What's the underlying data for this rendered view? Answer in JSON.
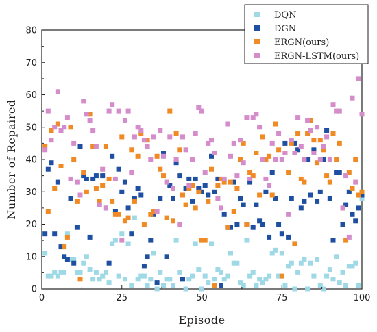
{
  "chart_data": {
    "type": "scatter",
    "title": "",
    "xlabel": "Episode",
    "ylabel": "Number of Repaired",
    "xlim": [
      0,
      100
    ],
    "ylim": [
      0,
      80
    ],
    "xticks": [
      0,
      25,
      50,
      75,
      100
    ],
    "yticks": [
      0,
      10,
      20,
      30,
      40,
      50,
      60,
      70,
      80
    ],
    "grid": false,
    "legend_position": "top-right",
    "series": [
      {
        "name": "DQN",
        "color": "#9fd9e6",
        "x": [
          1,
          2,
          3,
          4,
          5,
          6,
          7,
          8,
          9,
          10,
          11,
          12,
          13,
          14,
          15,
          16,
          17,
          18,
          19,
          20,
          21,
          22,
          23,
          24,
          25,
          26,
          27,
          28,
          29,
          30,
          31,
          32,
          33,
          34,
          35,
          36,
          37,
          38,
          39,
          40,
          41,
          42,
          43,
          44,
          45,
          46,
          47,
          48,
          49,
          50,
          51,
          52,
          53,
          54,
          55,
          56,
          57,
          58,
          59,
          60,
          61,
          62,
          63,
          64,
          65,
          66,
          67,
          68,
          69,
          70,
          71,
          72,
          73,
          74,
          75,
          76,
          77,
          78,
          79,
          80,
          81,
          82,
          83,
          84,
          85,
          86,
          87,
          88,
          89,
          90,
          91,
          92,
          93,
          94,
          95,
          96,
          97,
          98,
          99,
          100
        ],
        "y": [
          11,
          4,
          4,
          5,
          4,
          5,
          5,
          17,
          9,
          9,
          5,
          5,
          8,
          10,
          6,
          3,
          5,
          3,
          4,
          5,
          2,
          14,
          15,
          4,
          17,
          3,
          14,
          1,
          22,
          3,
          4,
          4,
          1,
          3,
          11,
          0,
          5,
          1,
          3,
          3,
          1,
          15,
          5,
          3,
          0,
          3,
          4,
          14,
          6,
          0,
          4,
          2,
          14,
          3,
          6,
          5,
          3,
          4,
          11,
          8,
          8,
          2,
          1,
          15,
          4,
          5,
          1,
          3,
          2,
          3,
          4,
          11,
          12,
          4,
          11,
          1,
          7,
          8,
          0,
          5,
          8,
          9,
          0,
          8,
          4,
          9,
          1,
          0,
          4,
          6,
          3,
          10,
          2,
          5,
          1,
          7,
          7,
          8,
          1,
          28
        ]
      },
      {
        "name": "DGN",
        "color": "#1f4fa0",
        "x": [
          1,
          2,
          3,
          4,
          5,
          6,
          7,
          8,
          9,
          10,
          11,
          12,
          13,
          14,
          15,
          16,
          17,
          18,
          19,
          20,
          21,
          22,
          23,
          24,
          25,
          26,
          27,
          28,
          29,
          30,
          31,
          32,
          33,
          34,
          35,
          36,
          37,
          38,
          39,
          40,
          41,
          42,
          43,
          44,
          45,
          46,
          47,
          48,
          49,
          50,
          51,
          52,
          53,
          54,
          55,
          56,
          57,
          58,
          59,
          60,
          61,
          62,
          63,
          64,
          65,
          66,
          67,
          68,
          69,
          70,
          71,
          72,
          73,
          74,
          75,
          76,
          77,
          78,
          79,
          80,
          81,
          82,
          83,
          84,
          85,
          86,
          87,
          88,
          89,
          90,
          91,
          92,
          93,
          94,
          95,
          96,
          97,
          98,
          99,
          100
        ],
        "y": [
          17,
          37,
          39,
          17,
          33,
          13,
          10,
          9,
          28,
          8,
          19,
          44,
          35,
          34,
          16,
          34,
          35,
          26,
          35,
          25,
          8,
          41,
          24,
          37,
          30,
          33,
          25,
          17,
          28,
          31,
          29,
          7,
          10,
          15,
          23,
          2,
          28,
          42,
          10,
          32,
          28,
          39,
          35,
          3,
          31,
          34,
          27,
          34,
          31,
          30,
          32,
          29,
          41,
          30,
          34,
          1,
          23,
          19,
          19,
          33,
          20,
          28,
          26,
          20,
          33,
          19,
          26,
          21,
          20,
          30,
          16,
          36,
          28,
          20,
          17,
          45,
          16,
          28,
          45,
          43,
          25,
          27,
          40,
          29,
          43,
          27,
          30,
          40,
          49,
          28,
          15,
          36,
          36,
          20,
          26,
          30,
          23,
          21,
          25,
          29
        ]
      },
      {
        "name": "ERGN(ours)",
        "color": "#f08a24",
        "x": [
          1,
          2,
          3,
          4,
          5,
          6,
          7,
          8,
          9,
          10,
          11,
          12,
          13,
          14,
          15,
          16,
          17,
          18,
          19,
          20,
          21,
          22,
          23,
          24,
          25,
          26,
          27,
          28,
          29,
          30,
          31,
          32,
          33,
          34,
          35,
          36,
          37,
          38,
          39,
          40,
          41,
          42,
          43,
          44,
          45,
          46,
          47,
          48,
          49,
          50,
          51,
          52,
          53,
          54,
          55,
          56,
          57,
          58,
          59,
          60,
          61,
          62,
          63,
          64,
          65,
          66,
          67,
          68,
          69,
          70,
          71,
          72,
          73,
          74,
          75,
          76,
          77,
          78,
          79,
          80,
          81,
          82,
          83,
          84,
          85,
          86,
          87,
          88,
          89,
          90,
          91,
          92,
          93,
          94,
          95,
          96,
          97,
          98,
          99,
          100
        ],
        "y": [
          44,
          24,
          49,
          31,
          51,
          38,
          13,
          16,
          50,
          40,
          27,
          3,
          36,
          30,
          54,
          44,
          31,
          27,
          32,
          44,
          34,
          27,
          23,
          23,
          47,
          21,
          22,
          43,
          27,
          41,
          48,
          20,
          46,
          23,
          24,
          41,
          37,
          35,
          22,
          55,
          21,
          48,
          43,
          29,
          26,
          31,
          32,
          25,
          30,
          15,
          15,
          27,
          37,
          1,
          32,
          34,
          33,
          19,
          33,
          24,
          31,
          40,
          45,
          20,
          36,
          35,
          42,
          29,
          47,
          40,
          41,
          29,
          51,
          43,
          4,
          42,
          36,
          45,
          14,
          48,
          34,
          33,
          48,
          52,
          46,
          39,
          46,
          43,
          35,
          33,
          48,
          40,
          45,
          25,
          15,
          36,
          31,
          40,
          29,
          30
        ]
      },
      {
        "name": "ERGN-LSTM(ours)",
        "color": "#d48ccb",
        "x": [
          1,
          2,
          3,
          4,
          5,
          6,
          7,
          8,
          9,
          10,
          11,
          12,
          13,
          14,
          15,
          16,
          17,
          18,
          19,
          20,
          21,
          22,
          23,
          24,
          25,
          26,
          27,
          28,
          29,
          30,
          31,
          32,
          33,
          34,
          35,
          36,
          37,
          38,
          39,
          40,
          41,
          42,
          43,
          44,
          45,
          46,
          47,
          48,
          49,
          50,
          51,
          52,
          53,
          54,
          55,
          56,
          57,
          58,
          59,
          60,
          61,
          62,
          63,
          64,
          65,
          66,
          67,
          68,
          69,
          70,
          71,
          72,
          73,
          74,
          75,
          76,
          77,
          78,
          79,
          80,
          81,
          82,
          83,
          84,
          85,
          86,
          87,
          88,
          89,
          90,
          91,
          92,
          93,
          94,
          95,
          96,
          97,
          98,
          99,
          100
        ],
        "y": [
          43,
          55,
          46,
          50,
          61,
          49,
          50,
          53,
          34,
          45,
          33,
          29,
          58,
          54,
          52,
          49,
          44,
          26,
          37,
          25,
          55,
          57,
          34,
          55,
          15,
          52,
          55,
          36,
          47,
          50,
          49,
          46,
          44,
          40,
          47,
          24,
          49,
          41,
          33,
          47,
          31,
          40,
          20,
          47,
          43,
          32,
          40,
          48,
          56,
          55,
          36,
          45,
          46,
          42,
          28,
          25,
          34,
          51,
          41,
          45,
          35,
          46,
          39,
          53,
          34,
          53,
          54,
          50,
          40,
          34,
          32,
          45,
          40,
          48,
          40,
          42,
          23,
          46,
          42,
          53,
          44,
          40,
          52,
          49,
          42,
          50,
          40,
          44,
          47,
          40,
          57,
          55,
          55,
          25,
          35,
          16,
          59,
          33,
          65,
          54
        ]
      }
    ]
  }
}
